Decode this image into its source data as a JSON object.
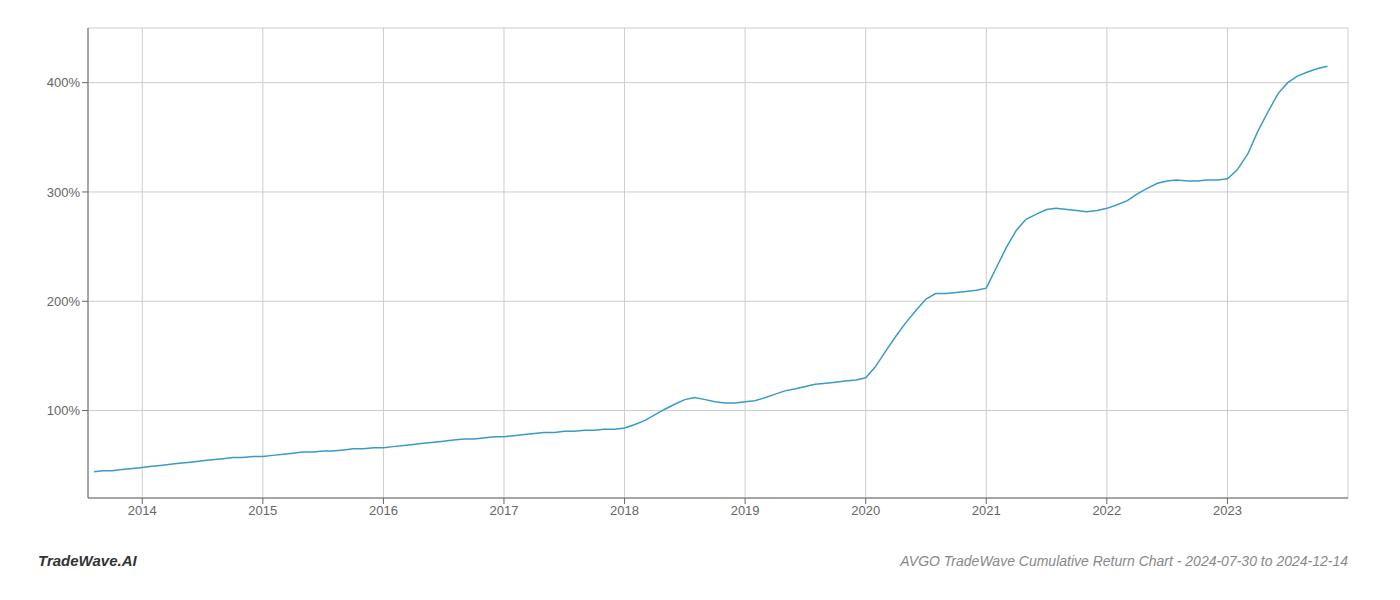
{
  "chart_data": {
    "type": "line",
    "title": "AVGO TradeWave Cumulative Return Chart - 2024-07-30 to 2024-12-14",
    "annotations": [
      "TradeWave.AI"
    ],
    "color": "#3a9bc4",
    "grid": true,
    "xlim": [
      2013.55,
      2024.0
    ],
    "xticks": [
      2014,
      2015,
      2016,
      2017,
      2018,
      2019,
      2020,
      2021,
      2022,
      2023
    ],
    "ylim": [
      20,
      450
    ],
    "yticks": [
      {
        "value": 100,
        "label": "100%"
      },
      {
        "value": 200,
        "label": "200%"
      },
      {
        "value": 300,
        "label": "300%"
      },
      {
        "value": 400,
        "label": "400%"
      }
    ],
    "x": [
      2013.6,
      2013.67,
      2013.75,
      2013.83,
      2013.92,
      2014.0,
      2014.08,
      2014.17,
      2014.25,
      2014.33,
      2014.42,
      2014.5,
      2014.58,
      2014.67,
      2014.75,
      2014.83,
      2014.92,
      2015.0,
      2015.08,
      2015.17,
      2015.25,
      2015.33,
      2015.42,
      2015.5,
      2015.58,
      2015.67,
      2015.75,
      2015.83,
      2015.92,
      2016.0,
      2016.08,
      2016.17,
      2016.25,
      2016.33,
      2016.42,
      2016.5,
      2016.58,
      2016.67,
      2016.75,
      2016.83,
      2016.92,
      2017.0,
      2017.08,
      2017.17,
      2017.25,
      2017.33,
      2017.42,
      2017.5,
      2017.58,
      2017.67,
      2017.75,
      2017.83,
      2017.92,
      2018.0,
      2018.08,
      2018.17,
      2018.25,
      2018.33,
      2018.42,
      2018.5,
      2018.58,
      2018.67,
      2018.75,
      2018.83,
      2018.92,
      2019.0,
      2019.08,
      2019.17,
      2019.25,
      2019.33,
      2019.42,
      2019.5,
      2019.58,
      2019.67,
      2019.75,
      2019.83,
      2019.92,
      2020.0,
      2020.08,
      2020.17,
      2020.25,
      2020.33,
      2020.42,
      2020.5,
      2020.58,
      2020.67,
      2020.75,
      2020.83,
      2020.92,
      2021.0,
      2021.08,
      2021.17,
      2021.25,
      2021.33,
      2021.42,
      2021.5,
      2021.58,
      2021.67,
      2021.75,
      2021.83,
      2021.92,
      2022.0,
      2022.08,
      2022.17,
      2022.25,
      2022.33,
      2022.42,
      2022.5,
      2022.58,
      2022.67,
      2022.75,
      2022.83,
      2022.92,
      2023.0,
      2023.08,
      2023.17,
      2023.25,
      2023.33,
      2023.42,
      2023.5,
      2023.58,
      2023.67,
      2023.75,
      2023.83
    ],
    "values": [
      44,
      45,
      45,
      46,
      47,
      48,
      49,
      50,
      51,
      52,
      53,
      54,
      55,
      56,
      57,
      57,
      58,
      58,
      59,
      60,
      61,
      62,
      62,
      63,
      63,
      64,
      65,
      65,
      66,
      66,
      67,
      68,
      69,
      70,
      71,
      72,
      73,
      74,
      74,
      75,
      76,
      76,
      77,
      78,
      79,
      80,
      80,
      81,
      81,
      82,
      82,
      83,
      83,
      84,
      87,
      91,
      96,
      101,
      106,
      110,
      112,
      110,
      108,
      107,
      107,
      108,
      109,
      112,
      115,
      118,
      120,
      122,
      124,
      125,
      126,
      127,
      128,
      130,
      140,
      155,
      168,
      180,
      192,
      202,
      207,
      207,
      208,
      209,
      210,
      212,
      230,
      250,
      265,
      275,
      280,
      284,
      285,
      284,
      283,
      282,
      283,
      285,
      288,
      292,
      298,
      303,
      308,
      310,
      311,
      310,
      310,
      311,
      311,
      312,
      320,
      335,
      355,
      372,
      390,
      400,
      406,
      410,
      413,
      415
    ]
  }
}
